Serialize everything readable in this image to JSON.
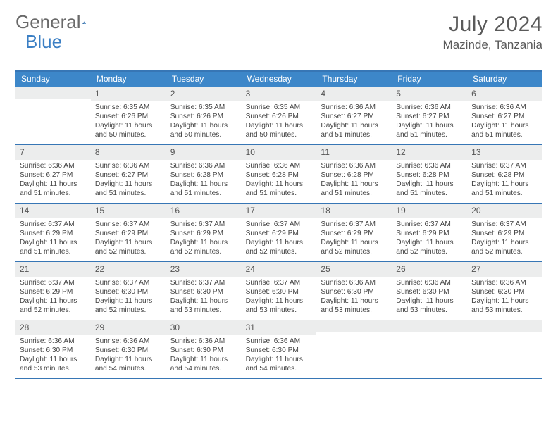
{
  "brand": {
    "part1": "General",
    "part2": "Blue"
  },
  "title": "July 2024",
  "location": "Mazinde, Tanzania",
  "colors": {
    "header_bar": "#3d87c9",
    "border": "#3776b5",
    "daynum_bg": "#eceded",
    "text": "#444444",
    "title_text": "#5a5a5a"
  },
  "weekdays": [
    "Sunday",
    "Monday",
    "Tuesday",
    "Wednesday",
    "Thursday",
    "Friday",
    "Saturday"
  ],
  "weeks": [
    [
      {
        "n": "",
        "sr": "",
        "ss": "",
        "dl": ""
      },
      {
        "n": "1",
        "sr": "Sunrise: 6:35 AM",
        "ss": "Sunset: 6:26 PM",
        "dl": "Daylight: 11 hours and 50 minutes."
      },
      {
        "n": "2",
        "sr": "Sunrise: 6:35 AM",
        "ss": "Sunset: 6:26 PM",
        "dl": "Daylight: 11 hours and 50 minutes."
      },
      {
        "n": "3",
        "sr": "Sunrise: 6:35 AM",
        "ss": "Sunset: 6:26 PM",
        "dl": "Daylight: 11 hours and 50 minutes."
      },
      {
        "n": "4",
        "sr": "Sunrise: 6:36 AM",
        "ss": "Sunset: 6:27 PM",
        "dl": "Daylight: 11 hours and 51 minutes."
      },
      {
        "n": "5",
        "sr": "Sunrise: 6:36 AM",
        "ss": "Sunset: 6:27 PM",
        "dl": "Daylight: 11 hours and 51 minutes."
      },
      {
        "n": "6",
        "sr": "Sunrise: 6:36 AM",
        "ss": "Sunset: 6:27 PM",
        "dl": "Daylight: 11 hours and 51 minutes."
      }
    ],
    [
      {
        "n": "7",
        "sr": "Sunrise: 6:36 AM",
        "ss": "Sunset: 6:27 PM",
        "dl": "Daylight: 11 hours and 51 minutes."
      },
      {
        "n": "8",
        "sr": "Sunrise: 6:36 AM",
        "ss": "Sunset: 6:27 PM",
        "dl": "Daylight: 11 hours and 51 minutes."
      },
      {
        "n": "9",
        "sr": "Sunrise: 6:36 AM",
        "ss": "Sunset: 6:28 PM",
        "dl": "Daylight: 11 hours and 51 minutes."
      },
      {
        "n": "10",
        "sr": "Sunrise: 6:36 AM",
        "ss": "Sunset: 6:28 PM",
        "dl": "Daylight: 11 hours and 51 minutes."
      },
      {
        "n": "11",
        "sr": "Sunrise: 6:36 AM",
        "ss": "Sunset: 6:28 PM",
        "dl": "Daylight: 11 hours and 51 minutes."
      },
      {
        "n": "12",
        "sr": "Sunrise: 6:36 AM",
        "ss": "Sunset: 6:28 PM",
        "dl": "Daylight: 11 hours and 51 minutes."
      },
      {
        "n": "13",
        "sr": "Sunrise: 6:37 AM",
        "ss": "Sunset: 6:28 PM",
        "dl": "Daylight: 11 hours and 51 minutes."
      }
    ],
    [
      {
        "n": "14",
        "sr": "Sunrise: 6:37 AM",
        "ss": "Sunset: 6:29 PM",
        "dl": "Daylight: 11 hours and 51 minutes."
      },
      {
        "n": "15",
        "sr": "Sunrise: 6:37 AM",
        "ss": "Sunset: 6:29 PM",
        "dl": "Daylight: 11 hours and 52 minutes."
      },
      {
        "n": "16",
        "sr": "Sunrise: 6:37 AM",
        "ss": "Sunset: 6:29 PM",
        "dl": "Daylight: 11 hours and 52 minutes."
      },
      {
        "n": "17",
        "sr": "Sunrise: 6:37 AM",
        "ss": "Sunset: 6:29 PM",
        "dl": "Daylight: 11 hours and 52 minutes."
      },
      {
        "n": "18",
        "sr": "Sunrise: 6:37 AM",
        "ss": "Sunset: 6:29 PM",
        "dl": "Daylight: 11 hours and 52 minutes."
      },
      {
        "n": "19",
        "sr": "Sunrise: 6:37 AM",
        "ss": "Sunset: 6:29 PM",
        "dl": "Daylight: 11 hours and 52 minutes."
      },
      {
        "n": "20",
        "sr": "Sunrise: 6:37 AM",
        "ss": "Sunset: 6:29 PM",
        "dl": "Daylight: 11 hours and 52 minutes."
      }
    ],
    [
      {
        "n": "21",
        "sr": "Sunrise: 6:37 AM",
        "ss": "Sunset: 6:29 PM",
        "dl": "Daylight: 11 hours and 52 minutes."
      },
      {
        "n": "22",
        "sr": "Sunrise: 6:37 AM",
        "ss": "Sunset: 6:30 PM",
        "dl": "Daylight: 11 hours and 52 minutes."
      },
      {
        "n": "23",
        "sr": "Sunrise: 6:37 AM",
        "ss": "Sunset: 6:30 PM",
        "dl": "Daylight: 11 hours and 53 minutes."
      },
      {
        "n": "24",
        "sr": "Sunrise: 6:37 AM",
        "ss": "Sunset: 6:30 PM",
        "dl": "Daylight: 11 hours and 53 minutes."
      },
      {
        "n": "25",
        "sr": "Sunrise: 6:36 AM",
        "ss": "Sunset: 6:30 PM",
        "dl": "Daylight: 11 hours and 53 minutes."
      },
      {
        "n": "26",
        "sr": "Sunrise: 6:36 AM",
        "ss": "Sunset: 6:30 PM",
        "dl": "Daylight: 11 hours and 53 minutes."
      },
      {
        "n": "27",
        "sr": "Sunrise: 6:36 AM",
        "ss": "Sunset: 6:30 PM",
        "dl": "Daylight: 11 hours and 53 minutes."
      }
    ],
    [
      {
        "n": "28",
        "sr": "Sunrise: 6:36 AM",
        "ss": "Sunset: 6:30 PM",
        "dl": "Daylight: 11 hours and 53 minutes."
      },
      {
        "n": "29",
        "sr": "Sunrise: 6:36 AM",
        "ss": "Sunset: 6:30 PM",
        "dl": "Daylight: 11 hours and 54 minutes."
      },
      {
        "n": "30",
        "sr": "Sunrise: 6:36 AM",
        "ss": "Sunset: 6:30 PM",
        "dl": "Daylight: 11 hours and 54 minutes."
      },
      {
        "n": "31",
        "sr": "Sunrise: 6:36 AM",
        "ss": "Sunset: 6:30 PM",
        "dl": "Daylight: 11 hours and 54 minutes."
      },
      {
        "n": "",
        "sr": "",
        "ss": "",
        "dl": ""
      },
      {
        "n": "",
        "sr": "",
        "ss": "",
        "dl": ""
      },
      {
        "n": "",
        "sr": "",
        "ss": "",
        "dl": ""
      }
    ]
  ]
}
